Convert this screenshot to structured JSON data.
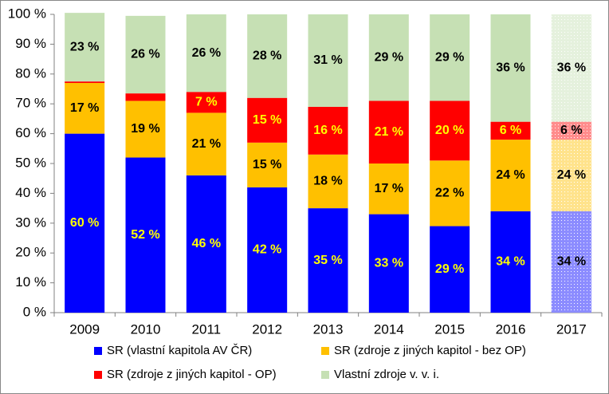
{
  "chart_data": {
    "type": "stacked_bar",
    "categories": [
      "2009",
      "2010",
      "2011",
      "2012",
      "2013",
      "2014",
      "2015",
      "2016",
      "2017"
    ],
    "series": [
      {
        "name": "SR (vlastní kapitola AV ČR)",
        "color": "#0000ff",
        "label_color": "#ffff00",
        "values": [
          60,
          52,
          46,
          42,
          35,
          33,
          29,
          34,
          34
        ],
        "value_labels": [
          "60 %",
          "52 %",
          "46 %",
          "42 %",
          "35 %",
          "33 %",
          "29 %",
          "34 %",
          "34 %"
        ]
      },
      {
        "name": "SR (zdroje z jiných kapitol - bez OP)",
        "color": "#ffc000",
        "label_color": "#000000",
        "values": [
          17,
          19,
          21,
          15,
          18,
          17,
          22,
          24,
          24
        ],
        "value_labels": [
          "17 %",
          "19 %",
          "21 %",
          "15 %",
          "18 %",
          "17 %",
          "22 %",
          "24 %",
          "24 %"
        ]
      },
      {
        "name": "SR (zdroje z jiných kapitol - OP)",
        "color": "#ff0000",
        "label_color": "#ffff00",
        "values": [
          0.5,
          2.5,
          7,
          15,
          16,
          21,
          20,
          6,
          6
        ],
        "value_labels": [
          null,
          null,
          "7 %",
          "15 %",
          "16 %",
          "21 %",
          "20 %",
          "6 %",
          "6 %"
        ]
      },
      {
        "name": "Vlastní zdroje v. v. i.",
        "color": "#c6e0b4",
        "label_color": "#000000",
        "values": [
          23,
          26,
          26,
          28,
          31,
          29,
          29,
          36,
          36
        ],
        "value_labels": [
          "23 %",
          "26 %",
          "26 %",
          "28 %",
          "31 %",
          "29 %",
          "29 %",
          "36 %",
          "36 %"
        ]
      }
    ],
    "ylim": [
      0,
      100
    ],
    "yticks": [
      {
        "value": 0,
        "label": "0 %"
      },
      {
        "value": 10,
        "label": "10 %"
      },
      {
        "value": 20,
        "label": "20 %"
      },
      {
        "value": 30,
        "label": "30 %"
      },
      {
        "value": 40,
        "label": "40 %"
      },
      {
        "value": 50,
        "label": "50 %"
      },
      {
        "value": 60,
        "label": "60 %"
      },
      {
        "value": 70,
        "label": "70 %"
      },
      {
        "value": 80,
        "label": "80 %"
      },
      {
        "value": 90,
        "label": "90 %"
      },
      {
        "value": 100,
        "label": "100 %"
      }
    ],
    "grid": false,
    "legend": "bottom",
    "hatched_last": true
  }
}
